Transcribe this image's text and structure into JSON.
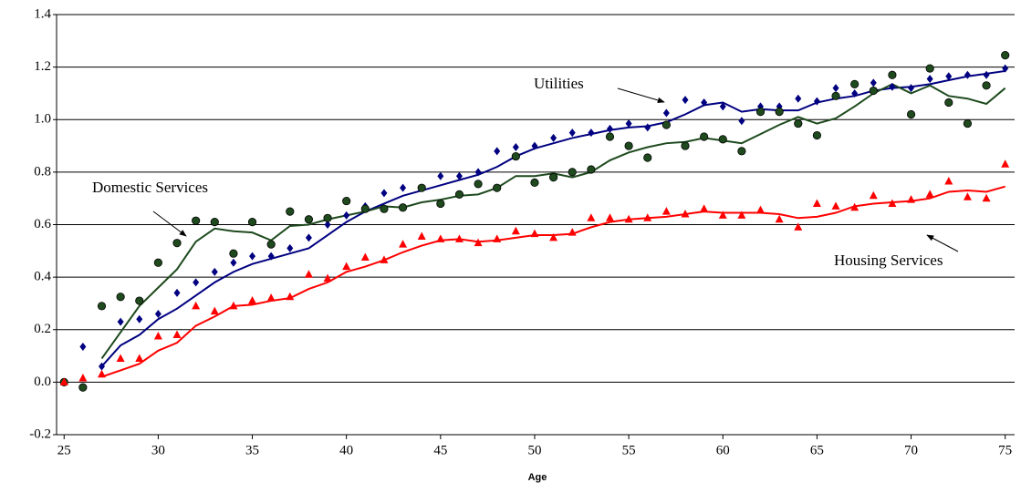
{
  "chart_data": {
    "type": "scatter",
    "x_label": "Age",
    "x": [
      25,
      26,
      27,
      28,
      29,
      30,
      31,
      32,
      33,
      34,
      35,
      36,
      37,
      38,
      39,
      40,
      41,
      42,
      43,
      44,
      45,
      46,
      47,
      48,
      49,
      50,
      51,
      52,
      53,
      54,
      55,
      56,
      57,
      58,
      59,
      60,
      61,
      62,
      63,
      64,
      65,
      66,
      67,
      68,
      69,
      70,
      71,
      72,
      73,
      74,
      75
    ],
    "xlim": [
      24.6,
      75.5
    ],
    "xticks": [
      25,
      30,
      35,
      40,
      45,
      50,
      55,
      60,
      65,
      70,
      75
    ],
    "ylim": [
      -0.2,
      1.4
    ],
    "yticks": [
      -0.2,
      {
        "value": 0,
        "label": "0.0"
      },
      0.2,
      0.4,
      0.6,
      0.8,
      {
        "value": 1,
        "label": "1.0"
      },
      1.2,
      1.4
    ],
    "grid": true,
    "series": [
      {
        "name": "Utilities",
        "color": "#000080",
        "marker": "diamond",
        "values": [
          0.0,
          0.135,
          0.06,
          0.23,
          0.24,
          0.26,
          0.34,
          0.38,
          0.42,
          0.455,
          0.48,
          0.48,
          0.51,
          0.55,
          0.6,
          0.635,
          0.67,
          0.72,
          0.74,
          0.74,
          0.785,
          0.785,
          0.8,
          0.88,
          0.895,
          0.9,
          0.93,
          0.95,
          0.95,
          0.965,
          0.985,
          0.97,
          1.025,
          1.075,
          1.065,
          1.05,
          0.995,
          1.05,
          1.05,
          1.08,
          1.07,
          1.12,
          1.1,
          1.14,
          1.125,
          1.12,
          1.155,
          1.165,
          1.17,
          1.17,
          1.195
        ],
        "trend": [
          null,
          null,
          0.06,
          0.14,
          0.18,
          0.24,
          0.28,
          0.33,
          0.38,
          0.42,
          0.45,
          0.47,
          0.49,
          0.51,
          0.56,
          0.61,
          0.65,
          0.68,
          0.71,
          0.73,
          0.75,
          0.77,
          0.79,
          0.82,
          0.86,
          0.89,
          0.91,
          0.93,
          0.945,
          0.96,
          0.97,
          0.975,
          0.99,
          1.02,
          1.055,
          1.065,
          1.03,
          1.04,
          1.035,
          1.035,
          1.065,
          1.08,
          1.09,
          1.11,
          1.12,
          1.125,
          1.135,
          1.15,
          1.165,
          1.175,
          1.185
        ]
      },
      {
        "name": "Domestic Services",
        "color": "#1e4a1e",
        "marker": "circle",
        "values": [
          0.0,
          -0.02,
          0.29,
          0.325,
          0.31,
          0.455,
          0.53,
          0.615,
          0.61,
          0.49,
          0.61,
          0.525,
          0.65,
          0.62,
          0.625,
          0.69,
          0.66,
          0.66,
          0.665,
          0.74,
          0.68,
          0.715,
          0.755,
          0.74,
          0.86,
          0.76,
          0.78,
          0.8,
          0.81,
          0.935,
          0.9,
          0.855,
          0.98,
          0.9,
          0.935,
          0.925,
          0.88,
          1.03,
          1.03,
          0.985,
          0.94,
          1.09,
          1.135,
          1.11,
          1.17,
          1.02,
          1.195,
          1.065,
          0.985,
          1.13,
          1.245
        ],
        "trend": [
          null,
          null,
          0.09,
          0.19,
          0.29,
          0.36,
          0.43,
          0.535,
          0.585,
          0.575,
          0.57,
          0.54,
          0.595,
          0.6,
          0.62,
          0.635,
          0.65,
          0.67,
          0.665,
          0.685,
          0.695,
          0.71,
          0.715,
          0.74,
          0.785,
          0.785,
          0.795,
          0.78,
          0.8,
          0.845,
          0.875,
          0.895,
          0.91,
          0.915,
          0.93,
          0.92,
          0.91,
          0.945,
          0.98,
          1.01,
          0.985,
          1.005,
          1.05,
          1.1,
          1.135,
          1.1,
          1.13,
          1.09,
          1.08,
          1.06,
          1.12
        ]
      },
      {
        "name": "Housing Services",
        "color": "#ff0000",
        "marker": "triangle",
        "values": [
          0.0,
          0.015,
          0.03,
          0.09,
          0.09,
          0.175,
          0.18,
          0.29,
          0.27,
          0.29,
          0.31,
          0.32,
          0.325,
          0.41,
          0.395,
          0.44,
          0.475,
          0.465,
          0.525,
          0.555,
          0.545,
          0.545,
          0.53,
          0.545,
          0.575,
          0.565,
          0.55,
          0.57,
          0.625,
          0.625,
          0.62,
          0.625,
          0.65,
          0.64,
          0.66,
          0.635,
          0.635,
          0.655,
          0.62,
          0.59,
          0.68,
          0.67,
          0.665,
          0.71,
          0.68,
          0.695,
          0.715,
          0.765,
          0.705,
          0.7,
          0.83
        ],
        "trend": [
          null,
          null,
          0.02,
          0.045,
          0.07,
          0.12,
          0.15,
          0.215,
          0.25,
          0.29,
          0.295,
          0.31,
          0.32,
          0.355,
          0.38,
          0.42,
          0.44,
          0.465,
          0.495,
          0.52,
          0.54,
          0.545,
          0.535,
          0.54,
          0.55,
          0.56,
          0.56,
          0.565,
          0.59,
          0.61,
          0.62,
          0.625,
          0.63,
          0.64,
          0.65,
          0.645,
          0.645,
          0.645,
          0.64,
          0.625,
          0.63,
          0.645,
          0.67,
          0.68,
          0.685,
          0.69,
          0.7,
          0.725,
          0.73,
          0.725,
          0.745
        ]
      }
    ]
  }
}
